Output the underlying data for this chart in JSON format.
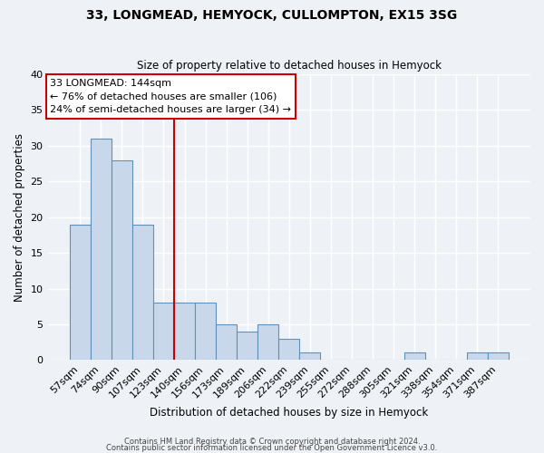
{
  "title": "33, LONGMEAD, HEMYOCK, CULLOMPTON, EX15 3SG",
  "subtitle": "Size of property relative to detached houses in Hemyock",
  "xlabel": "Distribution of detached houses by size in Hemyock",
  "ylabel": "Number of detached properties",
  "bar_color": "#c8d8ea",
  "bar_edge_color": "#6090b8",
  "categories": [
    "57sqm",
    "74sqm",
    "90sqm",
    "107sqm",
    "123sqm",
    "140sqm",
    "156sqm",
    "173sqm",
    "189sqm",
    "206sqm",
    "222sqm",
    "239sqm",
    "255sqm",
    "272sqm",
    "288sqm",
    "305sqm",
    "321sqm",
    "338sqm",
    "354sqm",
    "371sqm",
    "387sqm"
  ],
  "values": [
    19,
    31,
    28,
    19,
    8,
    8,
    8,
    5,
    4,
    5,
    3,
    1,
    0,
    0,
    0,
    0,
    1,
    0,
    0,
    1,
    1
  ],
  "ylim": [
    0,
    40
  ],
  "yticks": [
    0,
    5,
    10,
    15,
    20,
    25,
    30,
    35,
    40
  ],
  "annotation_title": "33 LONGMEAD: 144sqm",
  "annotation_line1": "← 76% of detached houses are smaller (106)",
  "annotation_line2": "24% of semi-detached houses are larger (34) →",
  "annotation_box_color": "#ffffff",
  "annotation_box_edge": "#cc0000",
  "line_color": "#cc0000",
  "red_line_x": 5.0,
  "footer1": "Contains HM Land Registry data © Crown copyright and database right 2024.",
  "footer2": "Contains public sector information licensed under the Open Government Licence v3.0.",
  "background_color": "#eef2f7",
  "plot_background": "#eef2f7"
}
